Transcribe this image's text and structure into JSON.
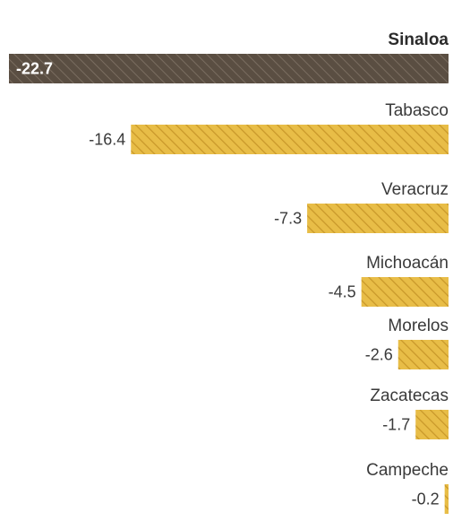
{
  "chart_data": {
    "type": "bar",
    "orientation": "horizontal",
    "categories": [
      "Sinaloa",
      "Tabasco",
      "Veracruz",
      "Michoacán",
      "Morelos",
      "Zacatecas",
      "Campeche"
    ],
    "values": [
      -22.7,
      -16.4,
      -7.3,
      -4.5,
      -2.6,
      -1.7,
      -0.2
    ],
    "value_labels": [
      "-22.7",
      "-16.4",
      "-7.3",
      "-4.5",
      "-2.6",
      "-1.7",
      "-0.2"
    ],
    "highlight": "Sinaloa",
    "xlim": [
      -22.7,
      0
    ],
    "grid": false,
    "legend": "none",
    "colors": {
      "bar": "#e8bd47",
      "bar_highlight": "#5a4e42",
      "hatch": "#c9982a",
      "hatch_highlight": "#7a6d60",
      "label": "#3a3a3a"
    }
  }
}
